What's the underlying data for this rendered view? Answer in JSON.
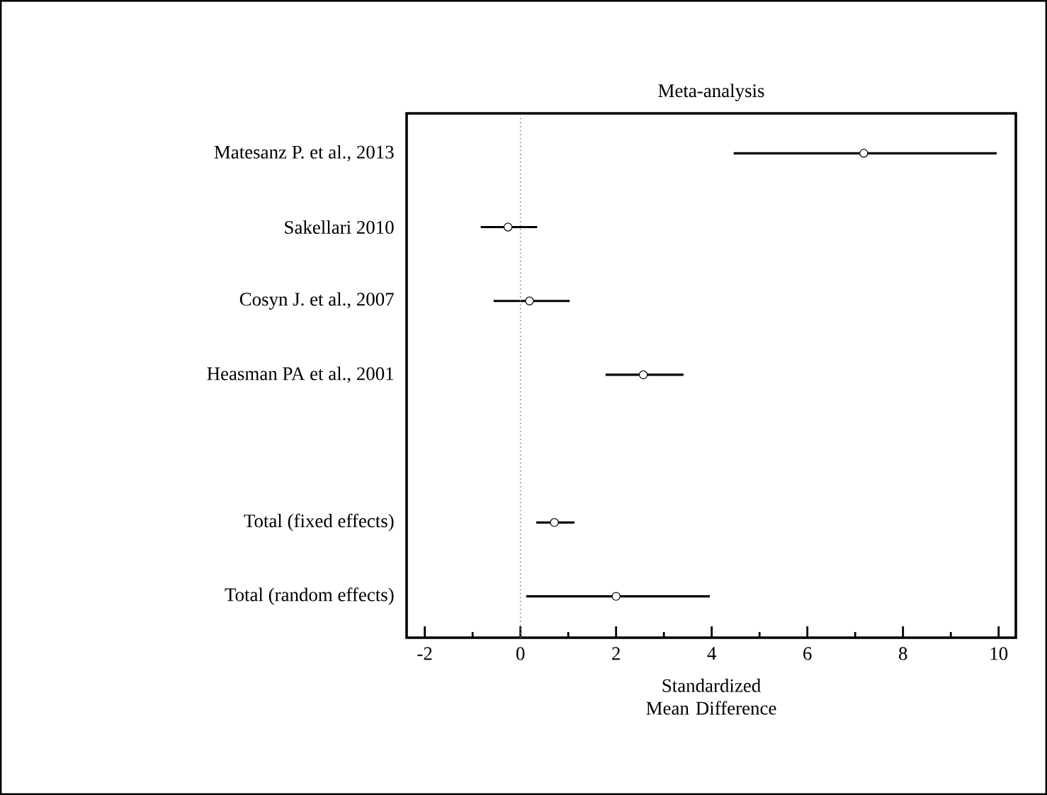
{
  "chart_data": {
    "type": "scatter",
    "orientation": "horizontal",
    "title": "Meta-analysis",
    "xlabel": "Standardized Mean Difference",
    "categories": [
      "Matesanz P. et al., 2013",
      "Sakellari 2010",
      "Cosyn J. et al., 2007",
      "Heasman PA et al., 2001",
      null,
      "Total (fixed effects)",
      "Total (random effects)"
    ],
    "values": [
      7.18,
      -0.26,
      0.19,
      2.57,
      null,
      0.71,
      2.0
    ],
    "errors": [
      [
        4.46,
        9.96
      ],
      [
        -0.83,
        0.35
      ],
      [
        -0.56,
        1.03
      ],
      [
        1.78,
        3.41
      ],
      null,
      [
        0.33,
        1.13
      ],
      [
        0.12,
        3.96
      ]
    ],
    "color": "#000000",
    "xlim": [
      -2.38,
      10.36
    ],
    "xticks": [
      -2,
      0,
      2,
      4,
      6,
      8,
      10
    ],
    "ref_lines": [
      {
        "axis": "x",
        "value": 0,
        "color": "#808080",
        "line_style": "dotted"
      }
    ]
  }
}
